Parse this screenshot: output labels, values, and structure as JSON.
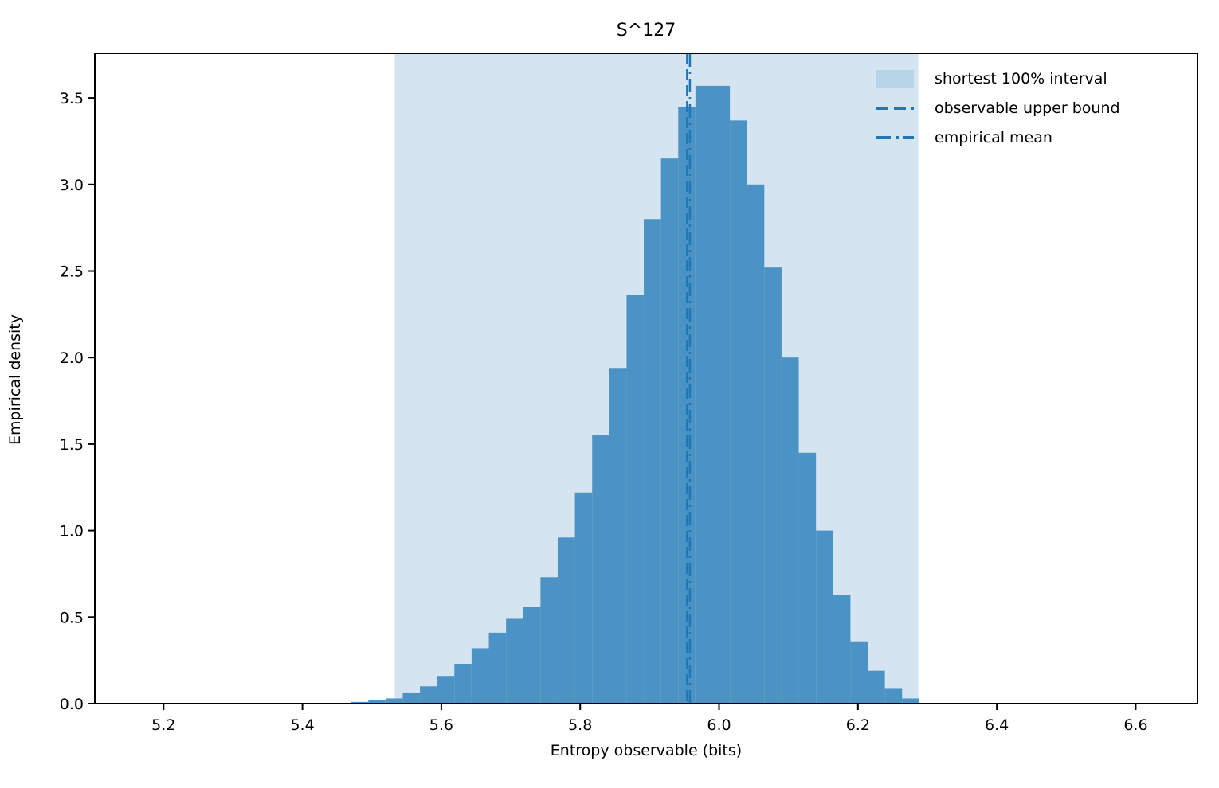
{
  "title": "S^127",
  "axes": {
    "xlabel": "Entropy observable (bits)",
    "ylabel": "Empirical density"
  },
  "legend": {
    "items": [
      {
        "label": "shortest 100% interval",
        "type": "patch"
      },
      {
        "label": "observable upper bound",
        "type": "dashed"
      },
      {
        "label": "empirical mean",
        "type": "dashdot"
      }
    ]
  },
  "colors": {
    "bar": "#4C93C5",
    "shade": "#D4E4F0",
    "legend_patch": "#B8D4E9",
    "line": "#1F77B4",
    "axis": "#000000"
  },
  "chart_data": {
    "type": "bar",
    "subtype": "histogram",
    "title": "S^127",
    "xlabel": "Entropy observable (bits)",
    "ylabel": "Empirical density",
    "bin_start": 5.47,
    "bin_width": 0.0248,
    "heights": [
      0.01,
      0.02,
      0.03,
      0.06,
      0.1,
      0.16,
      0.23,
      0.32,
      0.41,
      0.49,
      0.56,
      0.73,
      0.96,
      1.22,
      1.55,
      1.94,
      2.36,
      2.8,
      3.15,
      3.45,
      3.57,
      3.57,
      3.37,
      3.0,
      2.52,
      2.0,
      1.45,
      1.0,
      0.63,
      0.36,
      0.19,
      0.09,
      0.03
    ],
    "shade_interval": [
      5.533,
      6.287
    ],
    "upper_bound_x": 5.954,
    "mean_x": 5.958,
    "xlim": [
      5.101,
      6.689
    ],
    "ylim": [
      0,
      3.758
    ],
    "xticks": [
      5.2,
      5.4,
      5.6,
      5.8,
      6.0,
      6.2,
      6.4,
      6.6
    ],
    "xtick_labels": [
      "5.2",
      "5.4",
      "5.6",
      "5.8",
      "6.0",
      "6.2",
      "6.4",
      "6.6"
    ],
    "yticks": [
      0.0,
      0.5,
      1.0,
      1.5,
      2.0,
      2.5,
      3.0,
      3.5
    ],
    "ytick_labels": [
      "0.0",
      "0.5",
      "1.0",
      "1.5",
      "2.0",
      "2.5",
      "3.0",
      "3.5"
    ],
    "grid": false,
    "legend_position": "upper right"
  }
}
